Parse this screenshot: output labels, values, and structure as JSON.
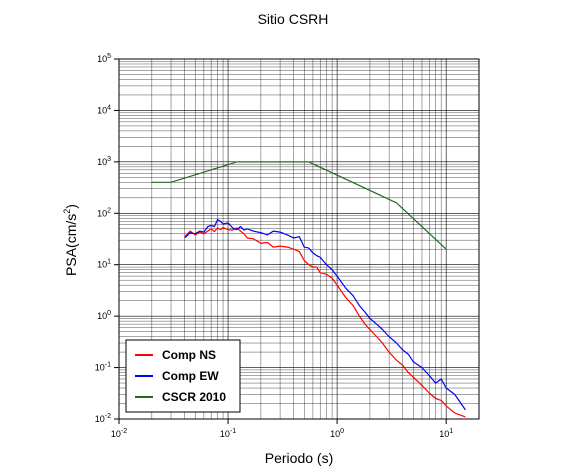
{
  "chart_data": {
    "type": "line",
    "title": "Sitio CSRH",
    "xlabel": "Periodo (s)",
    "ylabel": "PSA(cm/s",
    "ylabel_sup": "2",
    "ylabel_close": ")",
    "xscale": "log",
    "yscale": "log",
    "xlim": [
      0.01,
      20
    ],
    "ylim": [
      0.01,
      100000
    ],
    "grid": true,
    "legend_position": "bottom-left",
    "x_ticks": [
      {
        "base": "10",
        "exp": "-2"
      },
      {
        "base": "10",
        "exp": "-1"
      },
      {
        "base": "10",
        "exp": "0"
      },
      {
        "base": "10",
        "exp": "1"
      }
    ],
    "y_ticks": [
      {
        "base": "10",
        "exp": "-2"
      },
      {
        "base": "10",
        "exp": "-1"
      },
      {
        "base": "10",
        "exp": "0"
      },
      {
        "base": "10",
        "exp": "1"
      },
      {
        "base": "10",
        "exp": "2"
      },
      {
        "base": "10",
        "exp": "3"
      },
      {
        "base": "10",
        "exp": "4"
      },
      {
        "base": "10",
        "exp": "5"
      }
    ],
    "series": [
      {
        "name": "Comp NS",
        "color": "#ff0000",
        "x": [
          0.04,
          0.045,
          0.05,
          0.055,
          0.06,
          0.065,
          0.07,
          0.075,
          0.08,
          0.085,
          0.09,
          0.1,
          0.11,
          0.12,
          0.13,
          0.14,
          0.15,
          0.17,
          0.2,
          0.23,
          0.26,
          0.3,
          0.35,
          0.4,
          0.45,
          0.5,
          0.55,
          0.6,
          0.65,
          0.7,
          0.8,
          0.9,
          1.0,
          1.2,
          1.4,
          1.6,
          1.8,
          2.0,
          2.3,
          2.6,
          3.0,
          3.5,
          4.0,
          4.5,
          5.0,
          6.0,
          7.0,
          8.0,
          9.0,
          10.0,
          12.0,
          15.0
        ],
        "y": [
          35,
          45,
          38,
          43,
          40,
          45,
          50,
          44,
          52,
          48,
          53,
          48,
          47,
          52,
          45,
          40,
          33,
          32,
          26,
          27,
          22,
          23,
          22,
          20,
          18,
          12,
          10,
          9,
          9,
          7,
          6.5,
          5.5,
          4,
          2.3,
          1.6,
          1.0,
          0.7,
          0.55,
          0.4,
          0.3,
          0.2,
          0.14,
          0.11,
          0.08,
          0.065,
          0.045,
          0.032,
          0.025,
          0.023,
          0.018,
          0.013,
          0.011
        ]
      },
      {
        "name": "Comp EW",
        "color": "#0000ff",
        "x": [
          0.04,
          0.045,
          0.05,
          0.055,
          0.06,
          0.065,
          0.07,
          0.075,
          0.08,
          0.085,
          0.09,
          0.1,
          0.11,
          0.12,
          0.13,
          0.14,
          0.15,
          0.17,
          0.2,
          0.23,
          0.26,
          0.3,
          0.35,
          0.4,
          0.45,
          0.5,
          0.55,
          0.6,
          0.65,
          0.7,
          0.8,
          0.9,
          1.0,
          1.2,
          1.4,
          1.6,
          1.8,
          2.0,
          2.3,
          2.6,
          3.0,
          3.5,
          4.0,
          4.5,
          5.0,
          6.0,
          7.0,
          8.0,
          9.0,
          10.0,
          12.0,
          15.0
        ],
        "y": [
          33,
          42,
          40,
          45,
          43,
          55,
          58,
          55,
          75,
          70,
          62,
          65,
          52,
          48,
          55,
          47,
          50,
          45,
          42,
          38,
          45,
          43,
          38,
          33,
          35,
          22,
          21,
          17,
          15,
          14,
          10,
          8,
          6.0,
          3.5,
          2.5,
          1.6,
          1.2,
          0.9,
          0.7,
          0.55,
          0.4,
          0.3,
          0.22,
          0.18,
          0.13,
          0.1,
          0.07,
          0.05,
          0.06,
          0.04,
          0.03,
          0.015
        ]
      },
      {
        "name": "CSCR 2010",
        "color": "#1e6b1e",
        "x": [
          0.02,
          0.03,
          0.12,
          0.55,
          3.5,
          10.0
        ],
        "y": [
          400,
          400,
          1000,
          1000,
          160,
          20
        ]
      }
    ]
  }
}
